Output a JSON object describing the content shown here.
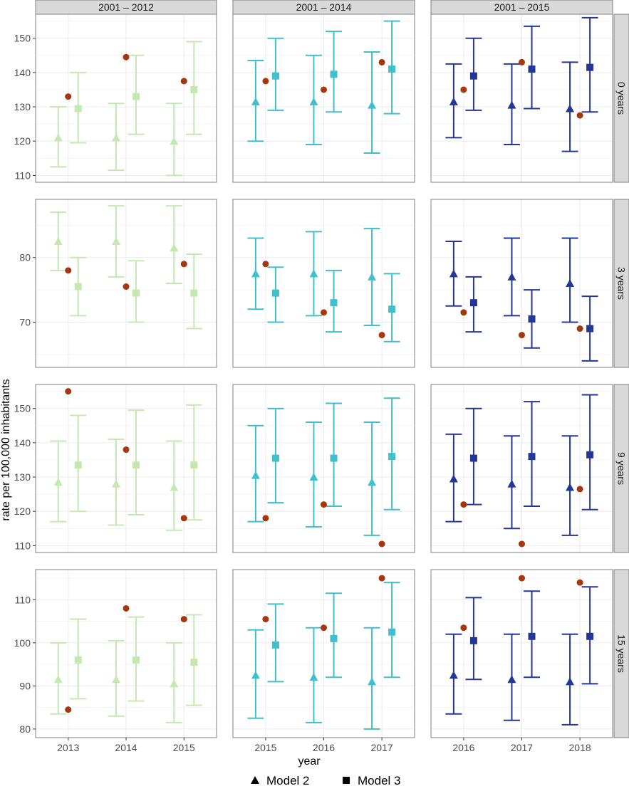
{
  "chart_data": {
    "type": "faceted-errorbar",
    "ylabel": "rate per 100,000 inhabitants",
    "xlabel": "year",
    "legend": {
      "position": "bottom",
      "items": [
        {
          "label": "Model 2",
          "shape": "triangle"
        },
        {
          "label": "Model 3",
          "shape": "square"
        }
      ]
    },
    "colors": {
      "2001 – 2012": "#c5e8b3",
      "2001 – 2014": "#41bfcc",
      "2001 – 2015": "#253695",
      "observed": "#a33810",
      "strip_bg": "#d9d9d9",
      "grid": "#ebebeb",
      "border": "#7f7f7f"
    },
    "columns": [
      {
        "label": "2001 – 2012",
        "years": [
          "2013",
          "2014",
          "2015"
        ]
      },
      {
        "label": "2001 – 2014",
        "years": [
          "2015",
          "2016",
          "2017"
        ]
      },
      {
        "label": "2001 – 2015",
        "years": [
          "2016",
          "2017",
          "2018"
        ]
      }
    ],
    "rows": [
      {
        "label": "0 years",
        "ylim": [
          108,
          157
        ],
        "ticks": [
          110,
          120,
          130,
          140,
          150
        ],
        "cells": [
          {
            "m2": [
              [
                112.5,
                121,
                130
              ],
              [
                111.5,
                121,
                131
              ],
              [
                110,
                120,
                131
              ]
            ],
            "m3": [
              [
                119.5,
                129.5,
                140
              ],
              [
                122,
                133,
                145
              ],
              [
                122,
                135,
                149
              ]
            ],
            "obs": [
              133,
              144.5,
              137.5
            ]
          },
          {
            "m2": [
              [
                120,
                131.5,
                143.5
              ],
              [
                119,
                131.5,
                145
              ],
              [
                116.5,
                130.5,
                146
              ]
            ],
            "m3": [
              [
                129,
                139,
                150
              ],
              [
                128.5,
                139.5,
                152
              ],
              [
                128,
                141,
                155
              ]
            ],
            "obs": [
              137.5,
              135,
              143
            ]
          },
          {
            "m2": [
              [
                121,
                131.5,
                142.5
              ],
              [
                119,
                130.5,
                142.5
              ],
              [
                117,
                129.5,
                143
              ]
            ],
            "m3": [
              [
                129,
                139,
                150
              ],
              [
                129.5,
                141,
                153.5
              ],
              [
                128.5,
                141.5,
                156
              ]
            ],
            "obs": [
              135,
              143,
              127.5
            ]
          }
        ]
      },
      {
        "label": "3 years",
        "ylim": [
          63,
          89
        ],
        "ticks": [
          70,
          80
        ],
        "cells": [
          {
            "m2": [
              [
                78,
                82.5,
                87
              ],
              [
                77,
                82.5,
                88
              ],
              [
                76,
                81.5,
                88
              ]
            ],
            "m3": [
              [
                71,
                75.5,
                80
              ],
              [
                70,
                74.5,
                79.5
              ],
              [
                69,
                74.5,
                80.5
              ]
            ],
            "obs": [
              78,
              75.5,
              79
            ]
          },
          {
            "m2": [
              [
                72,
                77.5,
                83
              ],
              [
                71,
                77.5,
                84
              ],
              [
                69.5,
                77,
                84.5
              ]
            ],
            "m3": [
              [
                70,
                74.5,
                78.5
              ],
              [
                68.5,
                73,
                78
              ],
              [
                67,
                72,
                77.5
              ]
            ],
            "obs": [
              79,
              71.5,
              68
            ]
          },
          {
            "m2": [
              [
                72.5,
                77.5,
                82.5
              ],
              [
                71,
                77,
                83
              ],
              [
                70,
                76,
                83
              ]
            ],
            "m3": [
              [
                68.5,
                73,
                77
              ],
              [
                66,
                70.5,
                75
              ],
              [
                64,
                69,
                74
              ]
            ],
            "obs": [
              71.5,
              68,
              69
            ]
          }
        ]
      },
      {
        "label": "9 years",
        "ylim": [
          108,
          157
        ],
        "ticks": [
          110,
          120,
          130,
          140,
          150
        ],
        "cells": [
          {
            "m2": [
              [
                117,
                128.5,
                140.5
              ],
              [
                116,
                128,
                141
              ],
              [
                114.5,
                127,
                140.5
              ]
            ],
            "m3": [
              [
                120,
                133.5,
                148
              ],
              [
                119,
                133.5,
                149.5
              ],
              [
                117.5,
                133.5,
                151
              ]
            ],
            "obs": [
              155,
              138,
              118
            ]
          },
          {
            "m2": [
              [
                117,
                130.5,
                145
              ],
              [
                115.5,
                130,
                146
              ],
              [
                113,
                128.5,
                146
              ]
            ],
            "m3": [
              [
                122.5,
                135.5,
                150
              ],
              [
                121.5,
                135.5,
                151.5
              ],
              [
                120.5,
                136,
                153
              ]
            ],
            "obs": [
              118,
              122,
              110.5
            ]
          },
          {
            "m2": [
              [
                117,
                129.5,
                142.5
              ],
              [
                115,
                128,
                142
              ],
              [
                113,
                127,
                142
              ]
            ],
            "m3": [
              [
                122,
                135.5,
                150
              ],
              [
                121.5,
                136,
                152
              ],
              [
                120.5,
                136.5,
                154
              ]
            ],
            "obs": [
              122,
              110.5,
              126.5
            ]
          }
        ]
      },
      {
        "label": "15 years",
        "ylim": [
          78,
          117
        ],
        "ticks": [
          80,
          90,
          100,
          110
        ],
        "cells": [
          {
            "m2": [
              [
                83.5,
                91.5,
                100
              ],
              [
                83,
                91.5,
                100.5
              ],
              [
                81.5,
                90.5,
                100
              ]
            ],
            "m3": [
              [
                87,
                96,
                105.5
              ],
              [
                86.5,
                96,
                106
              ],
              [
                85.5,
                95.5,
                106.5
              ]
            ],
            "obs": [
              84.5,
              108,
              105.5
            ]
          },
          {
            "m2": [
              [
                82.5,
                92.5,
                103
              ],
              [
                81.5,
                92,
                103.5
              ],
              [
                80,
                91,
                103.5
              ]
            ],
            "m3": [
              [
                91,
                99.5,
                109
              ],
              [
                92,
                101,
                111.5
              ],
              [
                92,
                102.5,
                114
              ]
            ],
            "obs": [
              105.5,
              103.5,
              115
            ]
          },
          {
            "m2": [
              [
                83.5,
                92.5,
                102
              ],
              [
                82,
                91.5,
                102
              ],
              [
                81,
                91,
                102
              ]
            ],
            "m3": [
              [
                91.5,
                100.5,
                110.5
              ],
              [
                92,
                101.5,
                112
              ],
              [
                90.5,
                101.5,
                113
              ]
            ],
            "obs": [
              103.5,
              115,
              114
            ]
          }
        ]
      }
    ]
  }
}
